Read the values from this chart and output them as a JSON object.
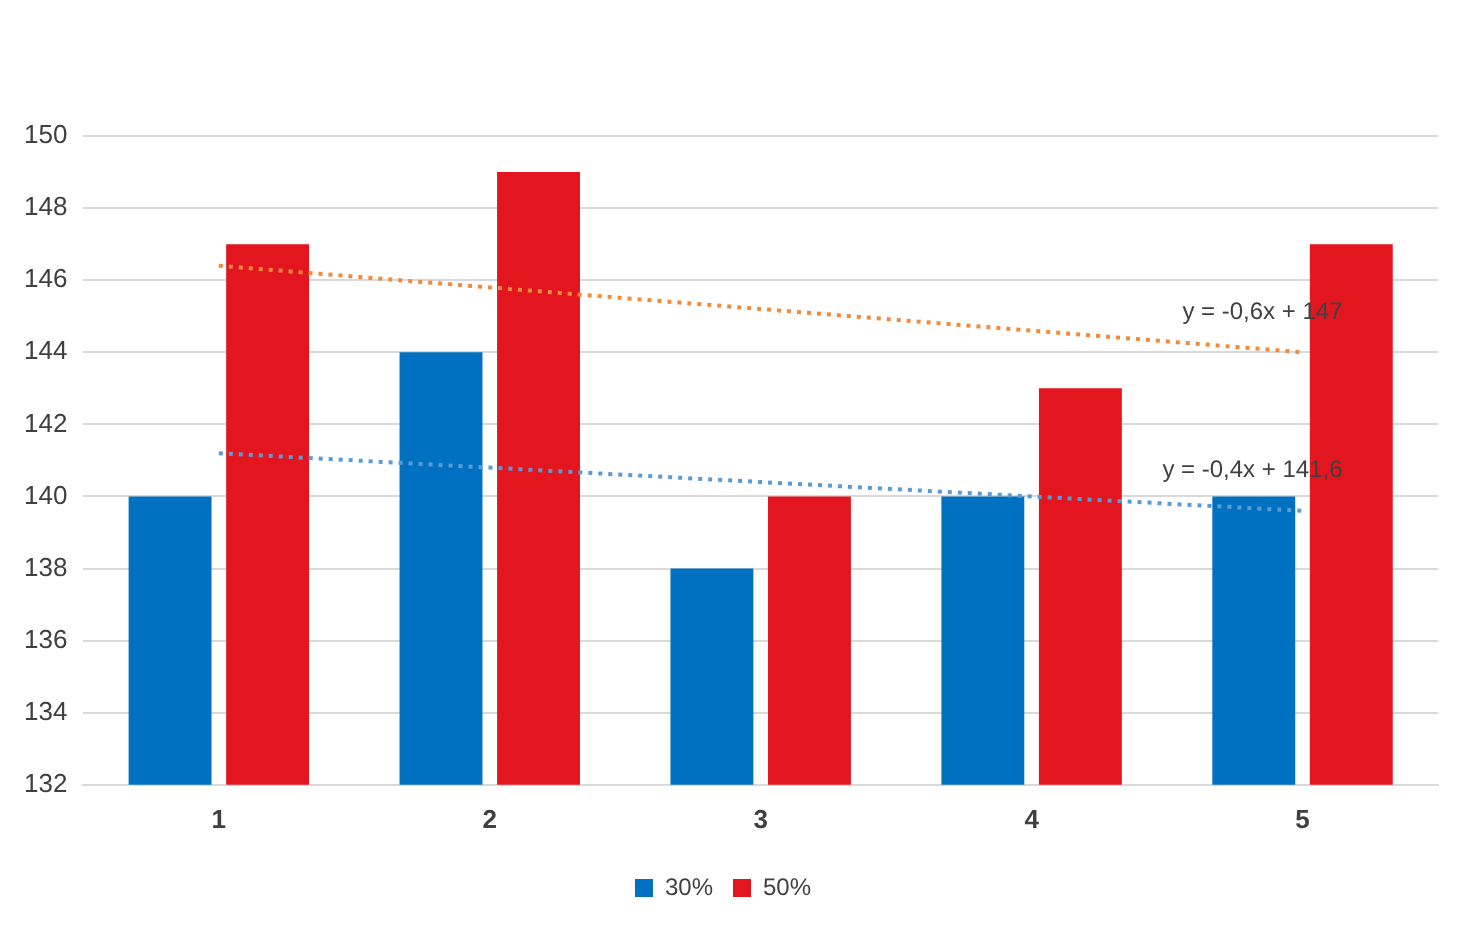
{
  "chart_data": {
    "type": "bar",
    "categories": [
      "1",
      "2",
      "3",
      "4",
      "5"
    ],
    "series": [
      {
        "name": "30%",
        "color": "#0070c0",
        "values": [
          140,
          144,
          138,
          140,
          140
        ]
      },
      {
        "name": "50%",
        "color": "#e3151f",
        "values": [
          147,
          149,
          140,
          143,
          147
        ]
      },
      {
        "type": "line",
        "color": "#5b9bd5",
        "values": [
          141.2,
          140.8,
          140.4,
          140,
          139.6
        ],
        "line_style": "dotted",
        "marker": "none"
      },
      {
        "type": "line",
        "color": "#f08a3c",
        "values": [
          146.4,
          145.8,
          145.2,
          144.6,
          144
        ],
        "line_style": "dotted",
        "marker": "none"
      }
    ],
    "annotations": [
      "y = -0,4x + 141,6",
      "y = -0,6x + 147"
    ],
    "ylim": [
      132,
      150
    ],
    "yticks": [
      132,
      134,
      136,
      138,
      140,
      142,
      144,
      146,
      148,
      150
    ],
    "grid": "y",
    "legend": "bottom"
  }
}
